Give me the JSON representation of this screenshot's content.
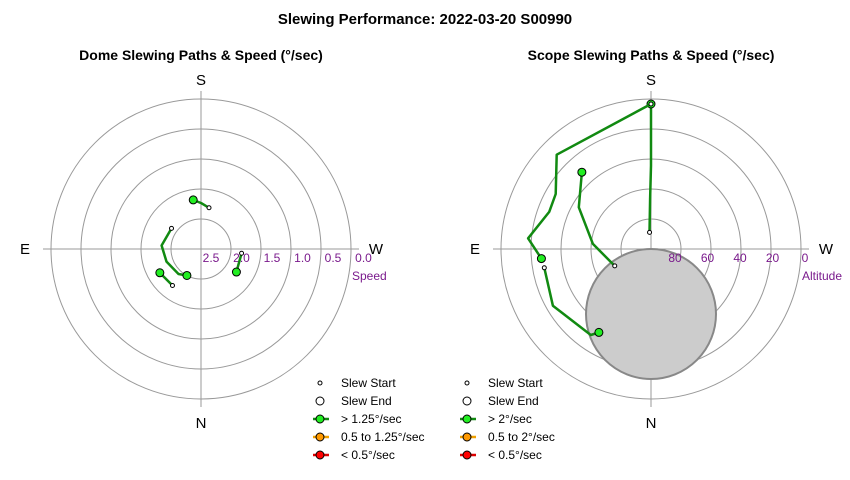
{
  "title": "Slewing Performance: 2022-03-20 S00990",
  "colors": {
    "path_fast": "#118a11",
    "marker_fast": "#22ee22",
    "path_medium": "#f0a000",
    "marker_medium": "#ff9900",
    "path_slow": "#dd0000",
    "marker_slow": "#ff0000",
    "grid": "#999999",
    "moon_fill": "#cccccc",
    "moon_stroke": "#888888",
    "tick_label": "#7a1a8c"
  },
  "chart_data": [
    {
      "type": "polar",
      "title": "Dome Slewing Paths & Speed (°/sec)",
      "compass": {
        "top": "S",
        "bottom": "N",
        "left": "E",
        "right": "W"
      },
      "radial_axis": {
        "label": "Speed",
        "tick_labels": [
          "2.5",
          "2.0",
          "1.5",
          "1.0",
          "0.5",
          "0.0"
        ],
        "tick_values": [
          2.5,
          2.0,
          1.5,
          1.0,
          0.5,
          0.0
        ],
        "range": [
          2.5,
          0.0
        ]
      },
      "legend": [
        {
          "label": "Slew Start",
          "kind": "start"
        },
        {
          "label": "Slew End",
          "kind": "end"
        },
        {
          "label": "> 1.25°/sec",
          "kind": "fast"
        },
        {
          "label": "0.5 to 1.25°/sec",
          "kind": "medium"
        },
        {
          "label": "< 0.5°/sec",
          "kind": "slow"
        }
      ],
      "series": [
        {
          "speed_class": "fast",
          "points": [
            {
              "az": 191,
              "r": 2.0
            },
            {
              "az": 181,
              "r": 1.85
            },
            {
              "az": 171,
              "r": 1.68
            }
          ]
        },
        {
          "speed_class": "fast",
          "points": [
            {
              "az": 125,
              "r": 2.25
            },
            {
              "az": 95,
              "r": 2.1
            },
            {
              "az": 70,
              "r": 2.22
            },
            {
              "az": 42,
              "r": 2.35
            },
            {
              "az": 28,
              "r": 2.5
            }
          ]
        },
        {
          "speed_class": "fast",
          "points": [
            {
              "az": 38,
              "r": 1.82
            },
            {
              "az": 60,
              "r": 1.77
            }
          ]
        },
        {
          "speed_class": "fast",
          "points": [
            {
              "az": 276,
              "r": 2.05
            },
            {
              "az": 303,
              "r": 1.99
            }
          ]
        }
      ]
    },
    {
      "type": "polar",
      "title": "Scope Slewing Paths & Speed (°/sec)",
      "compass": {
        "top": "S",
        "bottom": "N",
        "left": "E",
        "right": "W"
      },
      "radial_axis": {
        "label": "Altitude",
        "tick_labels": [
          "80",
          "60",
          "40",
          "20",
          "0"
        ],
        "tick_values": [
          80,
          60,
          40,
          20,
          0
        ],
        "range": [
          90,
          0
        ]
      },
      "legend": [
        {
          "label": "Slew Start",
          "kind": "start"
        },
        {
          "label": "Slew End",
          "kind": "end"
        },
        {
          "label": "> 2°/sec",
          "kind": "fast"
        },
        {
          "label": "0.5 to 2°/sec",
          "kind": "medium"
        },
        {
          "label": "< 0.5°/sec",
          "kind": "slow"
        }
      ],
      "moon": {
        "az": 0,
        "alt": 51,
        "radius_deg": 15
      },
      "series": [
        {
          "speed_class": "fast",
          "points": [
            {
              "az": 175,
              "alt": 80
            },
            {
              "az": 179,
              "alt": 60
            },
            {
              "az": 180,
              "alt": 40
            },
            {
              "az": 180,
              "alt": 3
            }
          ]
        },
        {
          "speed_class": "fast",
          "points": [
            {
              "az": 180,
              "alt": 3
            },
            {
              "az": 135,
              "alt": 10
            },
            {
              "az": 120,
              "alt": 24
            },
            {
              "az": 110,
              "alt": 25
            },
            {
              "az": 95,
              "alt": 16
            },
            {
              "az": 85,
              "alt": 24
            }
          ]
        },
        {
          "speed_class": "fast",
          "points": [
            {
              "az": 80,
              "alt": 25
            },
            {
              "az": 60,
              "alt": 22
            },
            {
              "az": 35,
              "alt": 27
            },
            {
              "az": 32,
              "alt": 31
            }
          ]
        },
        {
          "speed_class": "fast",
          "points": [
            {
              "az": 65,
              "alt": 66
            },
            {
              "az": 95,
              "alt": 55
            },
            {
              "az": 120,
              "alt": 40
            },
            {
              "az": 138,
              "alt": 28
            }
          ]
        }
      ]
    }
  ]
}
